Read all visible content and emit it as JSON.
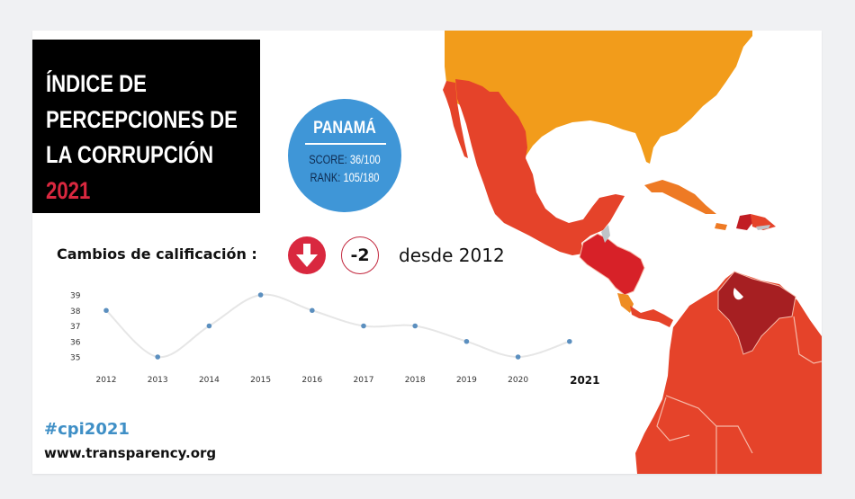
{
  "title": {
    "lines": [
      "ÍNDICE  DE",
      "PERCEPCIONES DE",
      "LA CORRUPCIÓN"
    ],
    "year": "2021"
  },
  "badge": {
    "country": "PANAMÁ",
    "score_label": "SCORE:",
    "score_value": "36/100",
    "rank_label": "RANK:",
    "rank_value": "105/180"
  },
  "changes": {
    "label": "Cambios de calificación :",
    "direction_icon": "arrow-down-icon",
    "delta": "-2",
    "since": "desde 2012"
  },
  "footer": {
    "hashtag": "#cpi2021",
    "website": "www.transparency.org"
  },
  "colors": {
    "accent_red": "#d9283f",
    "badge_blue": "#3f96d7",
    "usa_orange": "#f29c1b",
    "mexico_red": "#e5432a",
    "dark_red": "#a61f22",
    "point_blue": "#5b8fbf"
  },
  "chart_data": {
    "type": "line",
    "title": "",
    "xlabel": "",
    "ylabel": "",
    "x": [
      "2012",
      "2013",
      "2014",
      "2015",
      "2016",
      "2017",
      "2018",
      "2019",
      "2020",
      "2021"
    ],
    "series": [
      {
        "name": "Panamá CPI score",
        "values": [
          38,
          35,
          37,
          39,
          38,
          37,
          37,
          36,
          35,
          36
        ]
      }
    ],
    "y_ticks": [
      "39",
      "38",
      "37",
      "36",
      "35"
    ],
    "ylim": [
      35,
      39
    ],
    "grid": false,
    "legend": "none",
    "highlight_x": "2021"
  }
}
